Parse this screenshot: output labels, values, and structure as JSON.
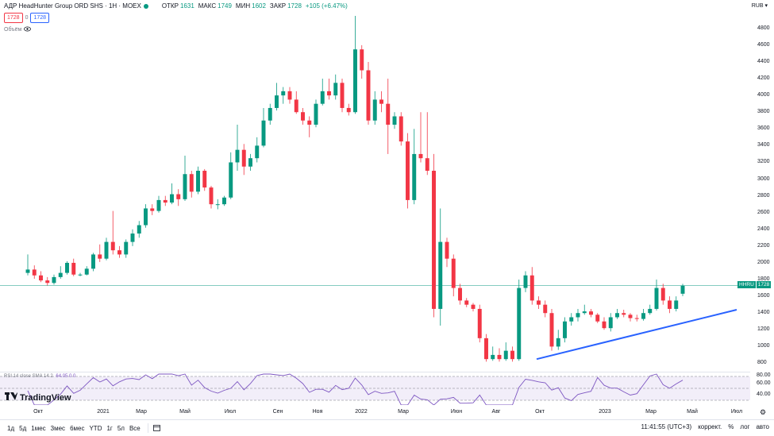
{
  "header": {
    "title": "АДР HeadHunter Group ORD SHS · 1H · MOEX",
    "ohlc": [
      {
        "label": "ОТКР",
        "value": "1631"
      },
      {
        "label": "МАКС",
        "value": "1749"
      },
      {
        "label": "МИН",
        "value": "1602"
      },
      {
        "label": "ЗАКР",
        "value": "1728"
      },
      {
        "label": "",
        "value": "+105 (+6.47%)"
      }
    ],
    "sell_price": "1728",
    "spread": "0",
    "buy_price": "1728",
    "volume_label": "Объём",
    "currency": "RUB"
  },
  "price_axis": [
    "4800",
    "4600",
    "4400",
    "4200",
    "4000",
    "3800",
    "3600",
    "3400",
    "3200",
    "3000",
    "2800",
    "2600",
    "2400",
    "2200",
    "2000",
    "1800",
    "1600",
    "1400",
    "1200",
    "1000",
    "800"
  ],
  "last_price": {
    "ticker": "HHRU",
    "value": "1728"
  },
  "rsi": {
    "label": "RSI 14 close SMA 14 2",
    "values": "64.05  0  0",
    "ticks": [
      "80.00",
      "60.00",
      "40.00"
    ]
  },
  "time_axis": [
    "Окт",
    "2021",
    "Мар",
    "Май",
    "Июл",
    "Сен",
    "Ноя",
    "2022",
    "Мар",
    "Июн",
    "Авг",
    "Окт",
    "2023",
    "Мар",
    "Май",
    "Июл"
  ],
  "logo": "TradingView",
  "toolbar": {
    "ranges": [
      "1д",
      "5д",
      "1мес",
      "3мес",
      "6мес",
      "YTD",
      "1г",
      "5л",
      "Все"
    ],
    "time": "11:41:55 (UTC+3)",
    "adj": "коррект.",
    "pct": "%",
    "log": "лог",
    "auto": "авто"
  },
  "colors": {
    "up": "#089981",
    "down": "#f23645",
    "trend": "#2962ff"
  },
  "chart_data": {
    "type": "candlestick",
    "ylim": [
      700,
      4950
    ],
    "trendline": [
      {
        "x": "2022-10-01",
        "y": 850
      },
      {
        "x": "2023-06-15",
        "y": 1440
      }
    ],
    "candles": [
      [
        1880,
        1920,
        2100,
        1850
      ],
      [
        1920,
        1850,
        1970,
        1810
      ],
      [
        1850,
        1790,
        1900,
        1770
      ],
      [
        1790,
        1760,
        1830,
        1730
      ],
      [
        1760,
        1830,
        1860,
        1740
      ],
      [
        1830,
        1880,
        1960,
        1810
      ],
      [
        1880,
        2000,
        2020,
        1860
      ],
      [
        2000,
        1860,
        2050,
        1840
      ],
      [
        1860,
        1860,
        1880,
        1840
      ],
      [
        1860,
        1930,
        1960,
        1850
      ],
      [
        1930,
        2100,
        2120,
        1900
      ],
      [
        2100,
        2050,
        2220,
        2010
      ],
      [
        2050,
        2250,
        2300,
        2030
      ],
      [
        2250,
        2150,
        2620,
        2100
      ],
      [
        2150,
        2100,
        2200,
        2060
      ],
      [
        2100,
        2250,
        2280,
        2060
      ],
      [
        2250,
        2350,
        2400,
        2200
      ],
      [
        2350,
        2450,
        2500,
        2300
      ],
      [
        2450,
        2650,
        2700,
        2420
      ],
      [
        2650,
        2620,
        2700,
        2570
      ],
      [
        2620,
        2750,
        2800,
        2600
      ],
      [
        2750,
        2720,
        2800,
        2680
      ],
      [
        2720,
        2820,
        2950,
        2700
      ],
      [
        2820,
        2760,
        2880,
        2680
      ],
      [
        2760,
        3060,
        3280,
        2740
      ],
      [
        3060,
        2850,
        3100,
        2780
      ],
      [
        2850,
        3100,
        3150,
        2820
      ],
      [
        3100,
        2900,
        3120,
        2860
      ],
      [
        2900,
        2700,
        2920,
        2650
      ],
      [
        2700,
        2700,
        2760,
        2640
      ],
      [
        2700,
        2780,
        2800,
        2680
      ],
      [
        2780,
        3200,
        3320,
        2760
      ],
      [
        3200,
        3350,
        3650,
        3100
      ],
      [
        3350,
        3150,
        3420,
        3050
      ],
      [
        3150,
        3250,
        3300,
        3100
      ],
      [
        3250,
        3400,
        3500,
        3200
      ],
      [
        3400,
        3700,
        3850,
        3380
      ],
      [
        3700,
        3850,
        3900,
        3650
      ],
      [
        3850,
        4000,
        4150,
        3820
      ],
      [
        4000,
        4050,
        4100,
        3900
      ],
      [
        4050,
        3950,
        4100,
        3900
      ],
      [
        3950,
        3800,
        4050,
        3780
      ],
      [
        3800,
        3700,
        3850,
        3650
      ],
      [
        3700,
        3650,
        3750,
        3500
      ],
      [
        3650,
        3900,
        3950,
        3620
      ],
      [
        3900,
        4050,
        4200,
        3880
      ],
      [
        4050,
        4000,
        4200,
        3950
      ],
      [
        4000,
        4150,
        4250,
        3950
      ],
      [
        4150,
        3850,
        4200,
        3800
      ],
      [
        3850,
        3800,
        3900,
        3760
      ],
      [
        3800,
        4550,
        4950,
        3780
      ],
      [
        4550,
        4300,
        4600,
        4200
      ],
      [
        4300,
        3700,
        4400,
        3650
      ],
      [
        3700,
        3950,
        4050,
        3650
      ],
      [
        3950,
        3900,
        4050,
        3800
      ],
      [
        3900,
        3650,
        4200,
        3300
      ],
      [
        3650,
        3750,
        3800,
        3600
      ],
      [
        3750,
        3450,
        3800,
        3400
      ],
      [
        3450,
        2750,
        3550,
        2650
      ],
      [
        2750,
        3300,
        3600,
        2700
      ],
      [
        3300,
        3250,
        3800,
        3200
      ],
      [
        3250,
        3100,
        3800,
        3050
      ],
      [
        3100,
        1450,
        3300,
        1350
      ],
      [
        1450,
        2250,
        2650,
        1250
      ],
      [
        2250,
        2050,
        2300,
        1950
      ],
      [
        2050,
        1700,
        2100,
        1600
      ],
      [
        1700,
        1550,
        1750,
        1500
      ],
      [
        1550,
        1500,
        1580,
        1470
      ],
      [
        1500,
        1450,
        1520,
        1420
      ],
      [
        1450,
        1100,
        1500,
        1050
      ],
      [
        1100,
        850,
        1150,
        820
      ],
      [
        850,
        900,
        1000,
        830
      ],
      [
        900,
        850,
        980,
        820
      ],
      [
        850,
        950,
        1050,
        830
      ],
      [
        950,
        850,
        1000,
        820
      ],
      [
        850,
        1700,
        1800,
        830
      ],
      [
        1700,
        1850,
        1900,
        1650
      ],
      [
        1850,
        1550,
        1950,
        1500
      ],
      [
        1550,
        1500,
        1600,
        1450
      ],
      [
        1500,
        1400,
        1550,
        1350
      ],
      [
        1400,
        1000,
        1450,
        950
      ],
      [
        1000,
        1100,
        1200,
        960
      ],
      [
        1100,
        1300,
        1350,
        1050
      ],
      [
        1300,
        1350,
        1400,
        1250
      ],
      [
        1350,
        1400,
        1450,
        1300
      ],
      [
        1400,
        1420,
        1500,
        1380
      ],
      [
        1420,
        1380,
        1450,
        1350
      ],
      [
        1380,
        1300,
        1400,
        1280
      ],
      [
        1300,
        1220,
        1350,
        1200
      ],
      [
        1220,
        1350,
        1400,
        1180
      ],
      [
        1350,
        1400,
        1450,
        1330
      ],
      [
        1400,
        1380,
        1440,
        1350
      ],
      [
        1380,
        1340,
        1400,
        1300
      ],
      [
        1340,
        1330,
        1380,
        1300
      ],
      [
        1330,
        1400,
        1450,
        1310
      ],
      [
        1400,
        1450,
        1500,
        1380
      ],
      [
        1450,
        1700,
        1800,
        1430
      ],
      [
        1700,
        1550,
        1750,
        1500
      ],
      [
        1550,
        1450,
        1600,
        1400
      ],
      [
        1450,
        1550,
        1600,
        1420
      ],
      [
        1631,
        1728,
        1749,
        1602
      ]
    ]
  }
}
